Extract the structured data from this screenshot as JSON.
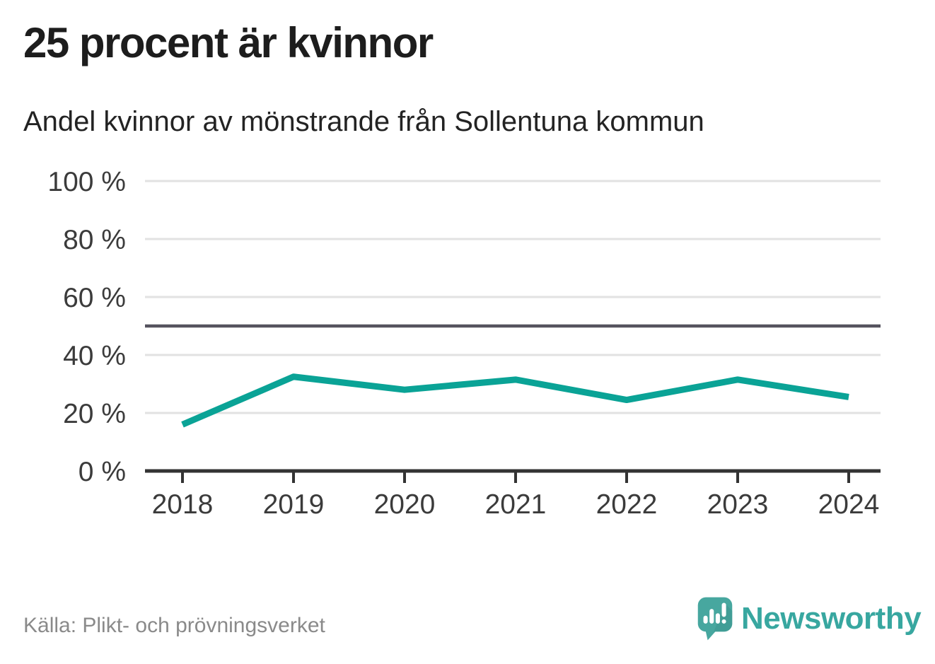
{
  "header": {
    "title": "25 procent är kvinnor",
    "subtitle": "Andel kvinnor av mönstrande från Sollentuna kommun"
  },
  "chart_data": {
    "type": "line",
    "title": "25 procent är kvinnor",
    "subtitle": "Andel kvinnor av mönstrande från Sollentuna kommun",
    "categories": [
      "2018",
      "2019",
      "2020",
      "2021",
      "2022",
      "2023",
      "2024"
    ],
    "series": [
      {
        "name": "Andel kvinnor av mönstrande",
        "values": [
          16,
          32.5,
          28,
          31.5,
          24.5,
          31.5,
          25.5
        ]
      }
    ],
    "unit": "%",
    "xlabel": "",
    "ylabel": "",
    "ylim": [
      0,
      100
    ],
    "yticks": [
      0,
      20,
      40,
      60,
      80,
      100
    ],
    "ytick_labels": [
      "0 %",
      "20 %",
      "40 %",
      "60 %",
      "80 %",
      "100 %"
    ],
    "reference_line": 50,
    "grid": true,
    "legend": "none",
    "line_color": "#0aa396",
    "reference_line_color": "#55535e",
    "axis_color": "#333333",
    "gridline_color": "#e2e2e2",
    "tick_label_color": "#3b3b3b"
  },
  "footer": {
    "source": "Källa: Plikt- och prövningsverket",
    "logo_text": "Newsworthy",
    "logo_color": "#38a7a0",
    "logo_bubble_color": "#47a79f",
    "logo_shadow_color": "#3c968e"
  }
}
